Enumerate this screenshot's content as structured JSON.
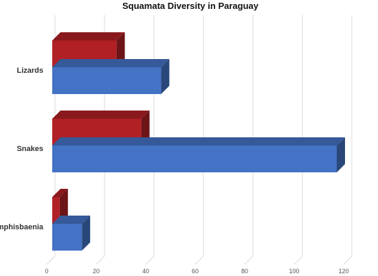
{
  "chart_data": {
    "type": "bar",
    "orientation": "horizontal",
    "style": "3d",
    "title": "Squamata Diversity in Paraguay",
    "xlabel": "",
    "ylabel": "",
    "categories": [
      "Lizards",
      "Snakes",
      "Amphisbaenia"
    ],
    "series": [
      {
        "values": [
          26,
          36,
          3
        ],
        "color": "#B02025"
      },
      {
        "values": [
          44,
          115,
          12
        ],
        "color": "#4472C4"
      }
    ],
    "xlim": [
      0,
      120
    ],
    "xticks": [
      "0",
      "20",
      "40",
      "60",
      "80",
      "100",
      "120"
    ],
    "grid": true,
    "legend": "none"
  }
}
